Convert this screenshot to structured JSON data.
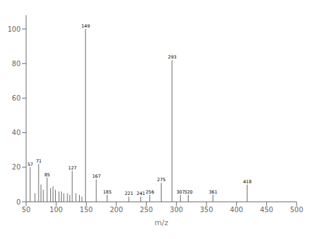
{
  "chart_data": {
    "type": "stem",
    "xlabel": "m/z",
    "x": [
      57,
      65,
      71,
      75,
      79,
      85,
      91,
      95,
      99,
      105,
      109,
      113,
      119,
      123,
      127,
      133,
      139,
      143,
      149,
      167,
      185,
      221,
      241,
      256,
      275,
      293,
      307,
      320,
      361,
      418
    ],
    "values": [
      20,
      5,
      22,
      10,
      7,
      14,
      8,
      9,
      7,
      6,
      6,
      5,
      5,
      4,
      18,
      5,
      4,
      3,
      100,
      13,
      4,
      3,
      3,
      4,
      11,
      82,
      4,
      4,
      4,
      10
    ],
    "color": "#666666",
    "annotations": [
      {
        "x": 57,
        "y": 20,
        "text": "57"
      },
      {
        "x": 71,
        "y": 22,
        "text": "71"
      },
      {
        "x": 85,
        "y": 14,
        "text": "85"
      },
      {
        "x": 127,
        "y": 18,
        "text": "127"
      },
      {
        "x": 149,
        "y": 100,
        "text": "149"
      },
      {
        "x": 167,
        "y": 13,
        "text": "167"
      },
      {
        "x": 185,
        "y": 4,
        "text": "185"
      },
      {
        "x": 221,
        "y": 3,
        "text": "221"
      },
      {
        "x": 241,
        "y": 3,
        "text": "241"
      },
      {
        "x": 256,
        "y": 4,
        "text": "256"
      },
      {
        "x": 275,
        "y": 11,
        "text": "275"
      },
      {
        "x": 293,
        "y": 82,
        "text": "293"
      },
      {
        "x": 307,
        "y": 4,
        "text": "307"
      },
      {
        "x": 320,
        "y": 4,
        "text": "320"
      },
      {
        "x": 361,
        "y": 4,
        "text": "361"
      },
      {
        "x": 418,
        "y": 10,
        "text": "418"
      }
    ],
    "xlim": [
      50,
      500
    ],
    "ylim": [
      0,
      108
    ],
    "xticks": [
      50,
      100,
      150,
      200,
      250,
      300,
      350,
      400,
      450,
      500
    ],
    "yticks": [
      0,
      20,
      40,
      60,
      80,
      100
    ],
    "grid": false
  }
}
